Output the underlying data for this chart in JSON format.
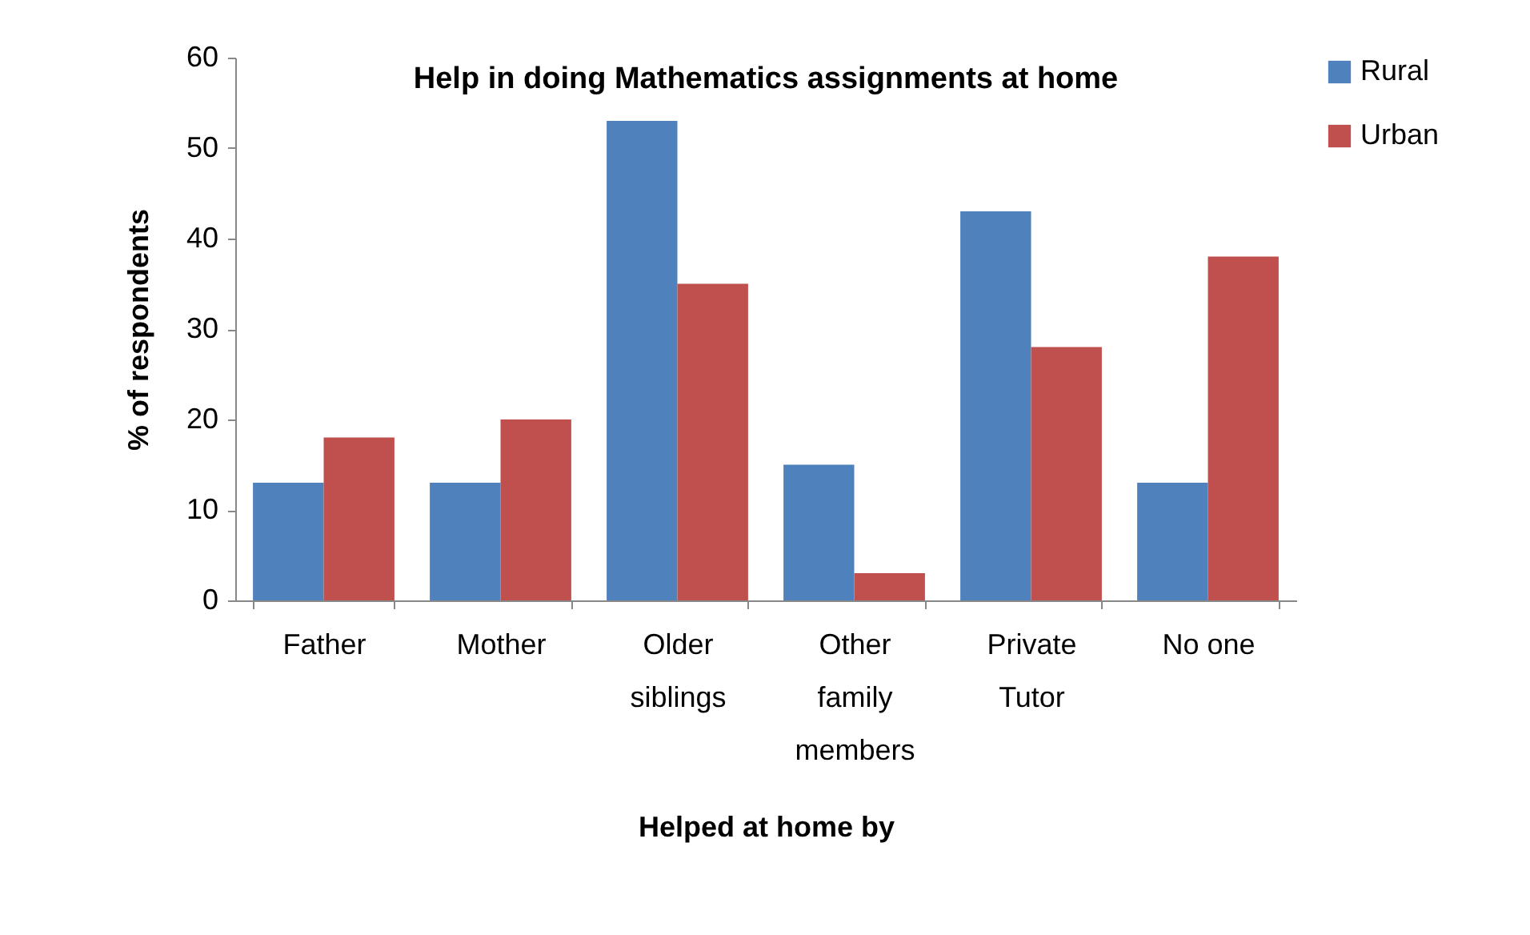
{
  "chart_data": {
    "type": "bar",
    "title": "Help in doing Mathematics assignments at home",
    "xlabel": "Helped at home by",
    "ylabel": "% of respondents",
    "categories": [
      "Father",
      "Mother",
      "Older siblings",
      "Other family members",
      "Private Tutor",
      "No one"
    ],
    "series": [
      {
        "name": "Rural",
        "color": "#4f81bd",
        "values": [
          13,
          13,
          53,
          15,
          43,
          13
        ]
      },
      {
        "name": "Urban",
        "color": "#c0504d",
        "values": [
          18,
          20,
          35,
          3,
          28,
          38
        ]
      }
    ],
    "ylim": [
      0,
      60
    ],
    "yticks": [
      0,
      10,
      20,
      30,
      40,
      50,
      60
    ],
    "grid": false,
    "legend": "right"
  }
}
